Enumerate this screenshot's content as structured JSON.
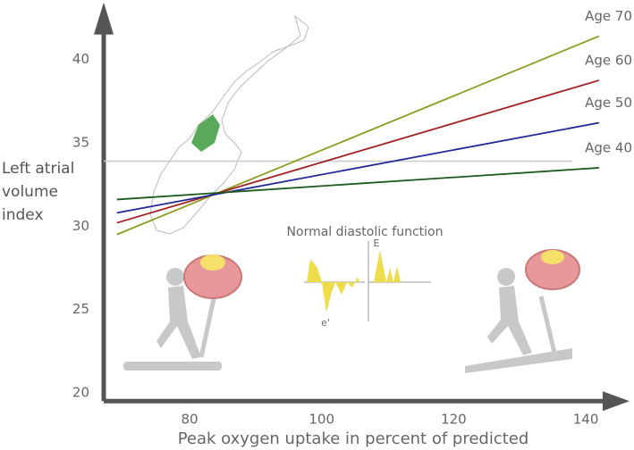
{
  "chart_data": {
    "type": "line",
    "x_label": "Peak oxygen uptake in percent of predicted",
    "y_label": "Left atrial\nvolume\nindex",
    "x": [
      69,
      142
    ],
    "series": [
      {
        "name": "Age 70",
        "color": "#8c9a1e",
        "values": [
          29.5,
          41.4
        ]
      },
      {
        "name": "Age 60",
        "color": "#a31f22",
        "values": [
          30.2,
          38.75
        ]
      },
      {
        "name": "Age 50",
        "color": "#1f2a96",
        "values": [
          30.8,
          36.2
        ]
      },
      {
        "name": "Age 40",
        "color": "#1d5a1d",
        "values": [
          31.6,
          33.5
        ]
      }
    ],
    "reference_line": 33.9,
    "xlim": [
      67,
      145
    ],
    "ylim": [
      19.5,
      43
    ],
    "xticks": [
      80,
      100,
      120,
      140
    ],
    "yticks": [
      20,
      25,
      30,
      35,
      40
    ],
    "annotations": [
      "Normal diastolic function",
      "E",
      "e'"
    ]
  }
}
